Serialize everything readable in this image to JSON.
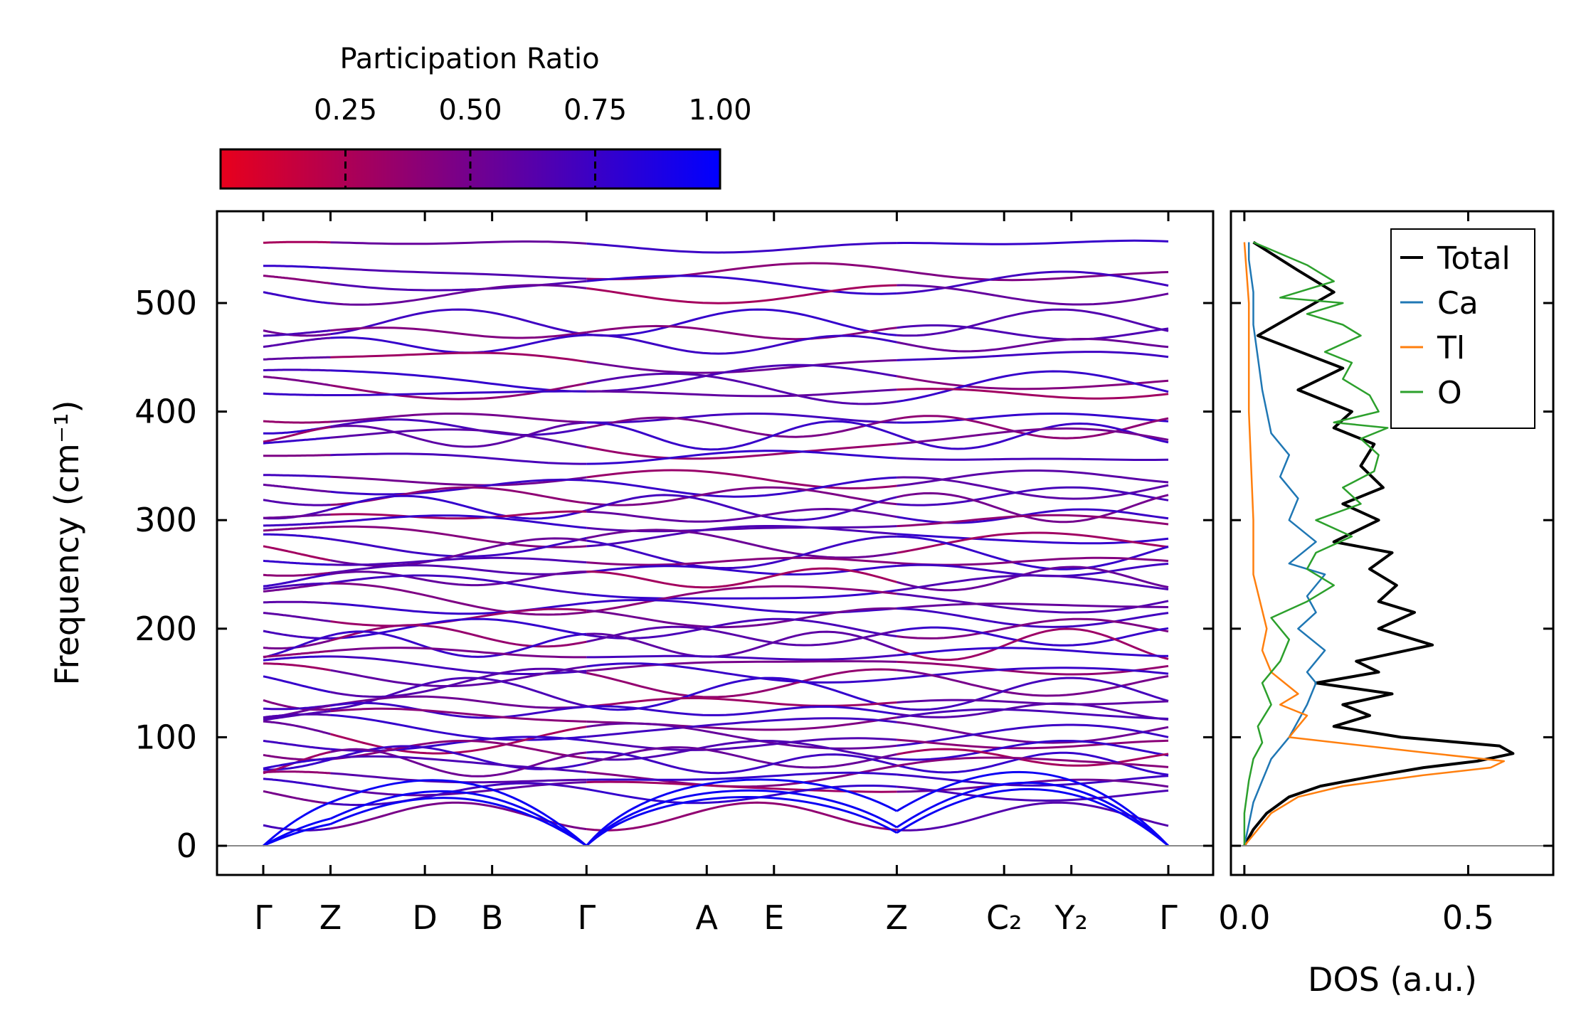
{
  "chart_data": [
    {
      "type": "line",
      "title": "",
      "xlabel": "",
      "ylabel": "Frequency (cm⁻¹)",
      "ylim": [
        -28,
        580
      ],
      "yticks": [
        0,
        100,
        200,
        300,
        400,
        500
      ],
      "ytick_labels": [
        "0",
        "100",
        "200",
        "300",
        "400",
        "500"
      ],
      "kpath": [
        {
          "label": "Γ",
          "pos": 0.0
        },
        {
          "label": "Z",
          "pos": 0.52
        },
        {
          "label": "D",
          "pos": 1.25
        },
        {
          "label": "B",
          "pos": 1.77
        },
        {
          "label": "Γ",
          "pos": 2.5
        },
        {
          "label": "A",
          "pos": 3.43
        },
        {
          "label": "E",
          "pos": 3.95
        },
        {
          "label": "Z",
          "pos": 4.9
        },
        {
          "label": "C₂",
          "pos": 5.73
        },
        {
          "label": "Y₂",
          "pos": 6.25
        },
        {
          "label": "Γ",
          "pos": 7.0
        }
      ],
      "segment_breaks": [
        0.52,
        2.5,
        4.9
      ],
      "colorbar": {
        "label": "Participation Ratio",
        "ticks": [
          0.25,
          0.5,
          0.75,
          1.0
        ],
        "tick_labels": [
          "0.25",
          "0.50",
          "0.75",
          "1.00"
        ],
        "range": [
          0.0,
          1.0
        ],
        "color_low": "#e8001c",
        "color_high": "#0000ff"
      },
      "acoustic_branches": [
        {
          "gamma_freq": 0,
          "z_freq": 20,
          "d_freq": 30,
          "b_freq": 50
        },
        {
          "gamma_freq": 0,
          "z_freq": 25,
          "d_freq": 40,
          "b_freq": 55
        },
        {
          "gamma_freq": 0,
          "z_freq": 40,
          "d_freq": 55,
          "b_freq": 65
        }
      ],
      "band_levels": [
        553,
        528,
        518,
        508,
        482,
        473,
        462,
        446,
        430,
        422,
        417,
        394,
        386,
        378,
        370,
        358,
        338,
        330,
        322,
        312,
        304,
        296,
        286,
        278,
        270,
        262,
        254,
        246,
        236,
        228,
        220,
        210,
        200,
        193,
        185,
        176,
        166,
        158,
        150,
        140,
        132,
        124,
        116,
        108,
        100,
        94,
        88,
        81,
        76,
        69,
        62,
        54,
        48,
        27
      ]
    },
    {
      "type": "line",
      "title": "",
      "xlabel": "DOS (a.u.)",
      "ylabel": "",
      "xlim": [
        -0.03,
        0.69
      ],
      "xticks": [
        0.0,
        0.5
      ],
      "xtick_labels": [
        "0.0",
        "0.5"
      ],
      "ylim": [
        -28,
        580
      ],
      "legend_position": "top-right",
      "series": [
        {
          "name": "Total",
          "color": "#000000",
          "x": [
            0.0,
            0.02,
            0.05,
            0.1,
            0.17,
            0.3,
            0.4,
            0.52,
            0.6,
            0.57,
            0.35,
            0.2,
            0.28,
            0.22,
            0.33,
            0.16,
            0.3,
            0.25,
            0.42,
            0.3,
            0.38,
            0.3,
            0.34,
            0.28,
            0.33,
            0.2,
            0.3,
            0.22,
            0.31,
            0.26,
            0.29,
            0.2,
            0.24,
            0.12,
            0.22,
            0.03,
            0.2,
            0.12,
            0.02
          ],
          "y": [
            0,
            15,
            30,
            45,
            55,
            65,
            72,
            78,
            85,
            92,
            100,
            110,
            120,
            130,
            140,
            150,
            160,
            170,
            185,
            200,
            215,
            225,
            240,
            255,
            270,
            280,
            300,
            315,
            330,
            350,
            370,
            385,
            400,
            420,
            440,
            470,
            510,
            530,
            556
          ]
        },
        {
          "name": "Ca",
          "color": "#1f77b4",
          "x": [
            0.0,
            0.01,
            0.02,
            0.04,
            0.05,
            0.06,
            0.08,
            0.1,
            0.12,
            0.14,
            0.16,
            0.14,
            0.18,
            0.12,
            0.16,
            0.14,
            0.18,
            0.1,
            0.16,
            0.1,
            0.12,
            0.08,
            0.1,
            0.06,
            0.05,
            0.04,
            0.03,
            0.02,
            0.02,
            0.01,
            0.01
          ],
          "y": [
            0,
            20,
            40,
            60,
            70,
            80,
            90,
            100,
            115,
            130,
            150,
            160,
            180,
            200,
            215,
            230,
            250,
            260,
            280,
            300,
            320,
            340,
            360,
            380,
            400,
            420,
            450,
            480,
            510,
            540,
            556
          ]
        },
        {
          "name": "Tl",
          "color": "#ff7f0e",
          "x": [
            0.0,
            0.03,
            0.06,
            0.12,
            0.22,
            0.4,
            0.55,
            0.58,
            0.4,
            0.1,
            0.14,
            0.08,
            0.12,
            0.06,
            0.04,
            0.05,
            0.02,
            0.02,
            0.01,
            0.01,
            0.0
          ],
          "y": [
            0,
            15,
            30,
            45,
            55,
            65,
            72,
            78,
            86,
            100,
            120,
            130,
            140,
            160,
            180,
            200,
            250,
            300,
            400,
            500,
            556
          ]
        },
        {
          "name": "O",
          "color": "#2ca02c",
          "x": [
            0.0,
            0.0,
            0.01,
            0.02,
            0.04,
            0.03,
            0.06,
            0.04,
            0.08,
            0.1,
            0.06,
            0.14,
            0.2,
            0.14,
            0.16,
            0.24,
            0.16,
            0.26,
            0.22,
            0.29,
            0.3,
            0.26,
            0.32,
            0.2,
            0.3,
            0.28,
            0.22,
            0.24,
            0.18,
            0.26,
            0.22,
            0.14,
            0.22,
            0.08,
            0.2,
            0.14,
            0.02
          ],
          "y": [
            0,
            30,
            60,
            80,
            95,
            110,
            130,
            150,
            170,
            190,
            210,
            225,
            240,
            255,
            270,
            285,
            300,
            315,
            330,
            345,
            360,
            375,
            385,
            390,
            400,
            415,
            430,
            445,
            455,
            470,
            480,
            490,
            500,
            505,
            520,
            535,
            556
          ]
        }
      ]
    }
  ]
}
